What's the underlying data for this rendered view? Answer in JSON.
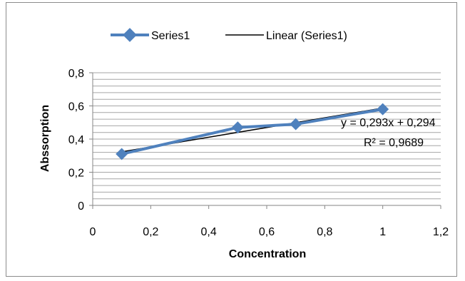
{
  "chart_data": {
    "type": "scatter",
    "title": "",
    "xlabel": "Concentration",
    "ylabel": "Abssorption",
    "xlim": [
      0,
      1.2
    ],
    "ylim": [
      0,
      0.8
    ],
    "x_major": 0.2,
    "y_major": 0.2,
    "y_minor": 0.04,
    "x_tick_labels": [
      "0",
      "0,2",
      "0,4",
      "0,6",
      "0,8",
      "1",
      "1,2"
    ],
    "y_tick_labels": [
      "0",
      "0,2",
      "0,4",
      "0,6",
      "0,8"
    ],
    "grid": "horizontal",
    "legend_position": "top",
    "series": [
      {
        "name": "Series1",
        "color": "#4f81bd",
        "marker": "diamond",
        "points": [
          {
            "x": 0.1,
            "y": 0.31
          },
          {
            "x": 0.5,
            "y": 0.47
          },
          {
            "x": 0.7,
            "y": 0.49
          },
          {
            "x": 1.0,
            "y": 0.58
          }
        ]
      }
    ],
    "trendline": {
      "name": "Linear (Series1)",
      "color": "#000000",
      "slope": 0.293,
      "intercept": 0.294,
      "x_from": 0.1,
      "x_to": 1.0,
      "equation_label": "y = 0,293x + 0,294",
      "r2_label": "R² = 0,9689"
    }
  }
}
